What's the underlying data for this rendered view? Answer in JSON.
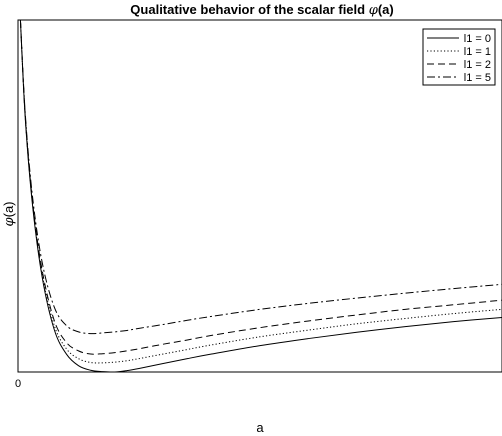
{
  "chart_data": {
    "type": "line",
    "title": {
      "prefix": "Qualitative behavior of the scalar field ",
      "symbol": "φ",
      "suffix": "(a)"
    },
    "xlabel": "a",
    "ylabel": {
      "symbol": "φ",
      "suffix": "(a)"
    },
    "x_ticks": [
      "0"
    ],
    "y_ticks": [],
    "xlim": [
      0,
      10
    ],
    "ylim": [
      0,
      10
    ],
    "grid": false,
    "legend_position": "top-right",
    "x": [
      0.05,
      0.15,
      0.3,
      0.5,
      0.75,
      1.0,
      1.25,
      1.5,
      1.75,
      2.0,
      2.25,
      2.5,
      3.0,
      3.5,
      4.0,
      5.0,
      6.0,
      7.0,
      8.0,
      9.0,
      10.0
    ],
    "series": [
      {
        "name": "l1 = 0",
        "style": "solid",
        "values": [
          10.0,
          7.21,
          4.74,
          2.69,
          1.2,
          0.51,
          0.18,
          0.05,
          0.01,
          0.0,
          0.04,
          0.1,
          0.24,
          0.38,
          0.51,
          0.75,
          0.95,
          1.13,
          1.29,
          1.43,
          1.55
        ]
      },
      {
        "name": "l1 = 1",
        "style": "dotted",
        "values": [
          10.0,
          7.24,
          4.79,
          2.78,
          1.32,
          0.66,
          0.38,
          0.27,
          0.26,
          0.28,
          0.32,
          0.38,
          0.51,
          0.64,
          0.77,
          1.0,
          1.19,
          1.37,
          1.52,
          1.66,
          1.78
        ]
      },
      {
        "name": "l1 = 2",
        "style": "dashed",
        "values": [
          10.0,
          7.27,
          4.84,
          2.88,
          1.46,
          0.84,
          0.6,
          0.51,
          0.52,
          0.55,
          0.6,
          0.66,
          0.79,
          0.91,
          1.04,
          1.26,
          1.45,
          1.62,
          1.78,
          1.91,
          2.04
        ]
      },
      {
        "name": "l1 = 5",
        "style": "dashdot",
        "values": [
          10.0,
          7.34,
          4.98,
          3.11,
          1.84,
          1.32,
          1.14,
          1.09,
          1.11,
          1.14,
          1.18,
          1.24,
          1.35,
          1.47,
          1.58,
          1.78,
          1.95,
          2.1,
          2.24,
          2.37,
          2.49
        ]
      }
    ]
  }
}
